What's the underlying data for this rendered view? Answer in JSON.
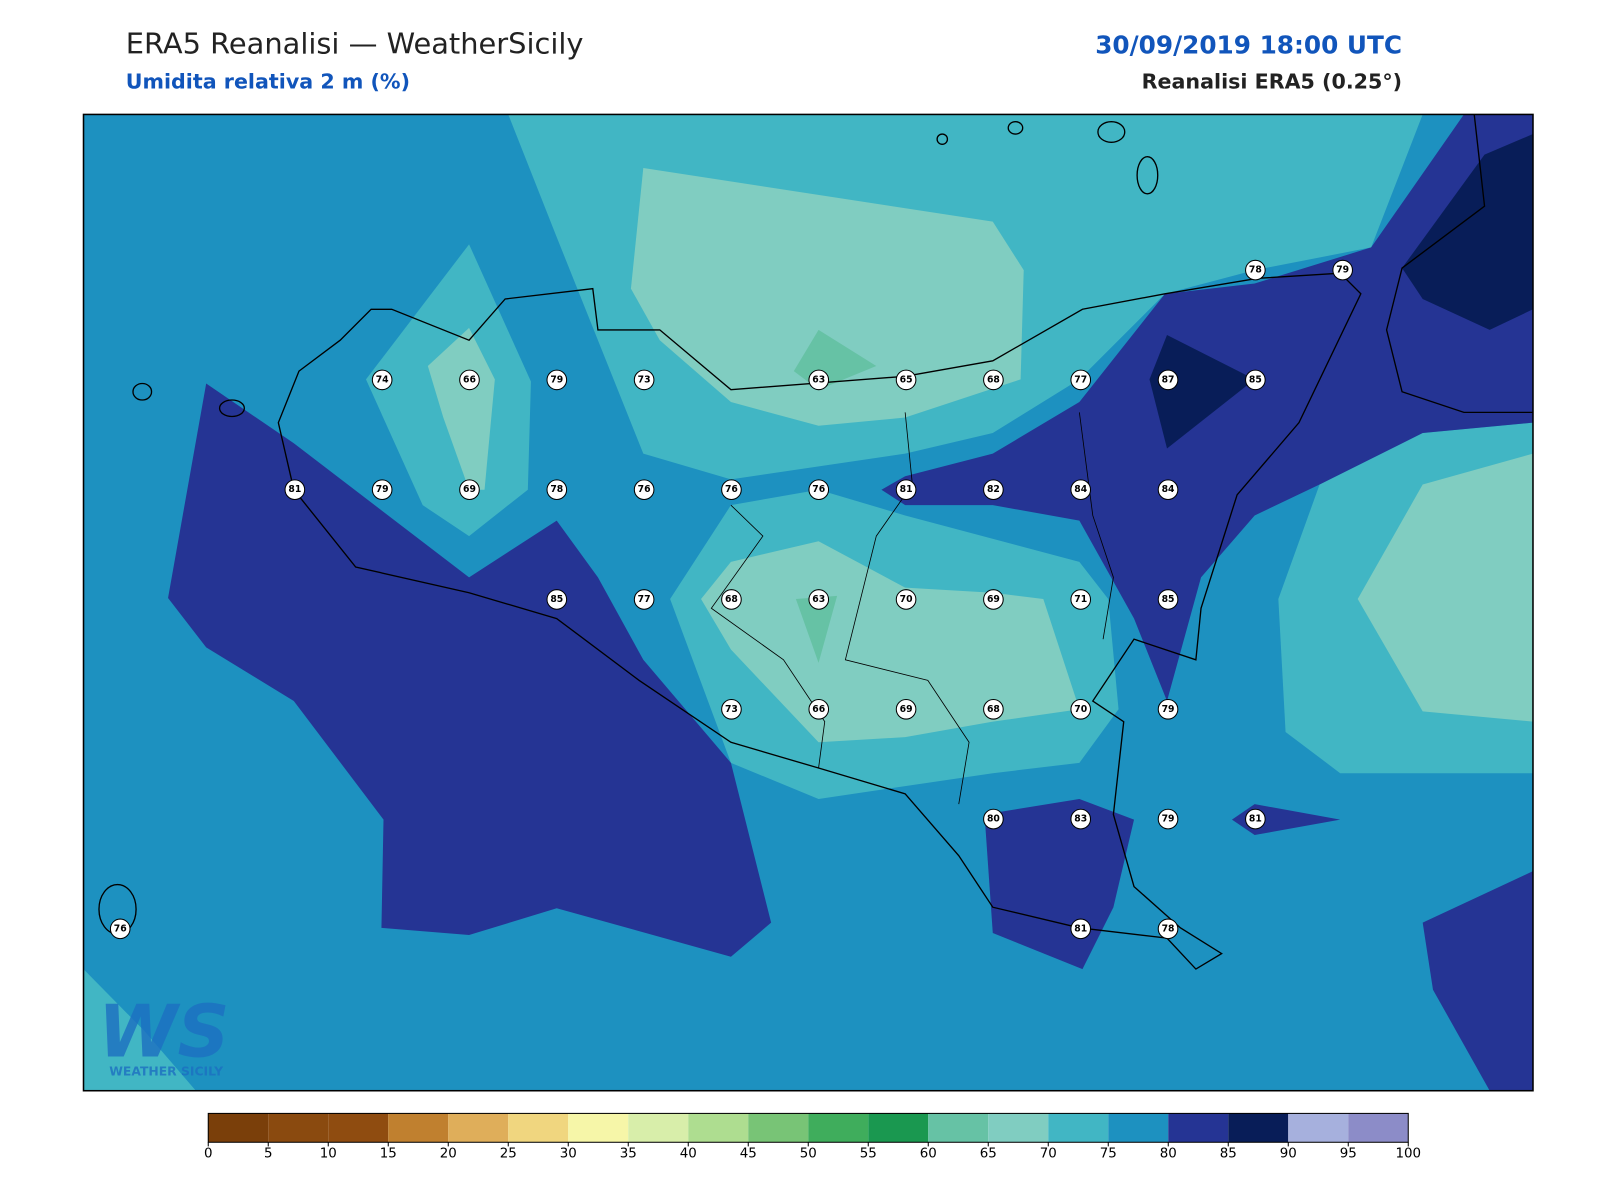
{
  "header": {
    "title": "ERA5 Reanalisi — WeatherSicily",
    "subtitle": "Umidita relativa 2 m (%)",
    "datetime": "30/09/2019 18:00 UTC",
    "source": "Reanalisi ERA5 (0.25°)"
  },
  "stations": {
    "values": [
      78,
      79,
      74,
      66,
      79,
      73,
      63,
      65,
      68,
      77,
      87,
      85,
      81,
      79,
      69,
      78,
      76,
      76,
      76,
      81,
      82,
      84,
      84,
      85,
      77,
      68,
      63,
      70,
      69,
      71,
      85,
      73,
      66,
      69,
      68,
      70,
      79,
      80,
      83,
      79,
      81,
      76,
      81,
      78
    ]
  },
  "colorbar": {
    "ticks": [
      0,
      5,
      10,
      15,
      20,
      25,
      30,
      35,
      40,
      45,
      50,
      55,
      60,
      65,
      70,
      75,
      80,
      85,
      90,
      95,
      100
    ],
    "colors": [
      "#7a3f0a",
      "#8a4a0f",
      "#8f4c10",
      "#c0802f",
      "#dfae5a",
      "#f0d67f",
      "#f6f6a8",
      "#d8eeaa",
      "#aedd90",
      "#78c476",
      "#3fad5c",
      "#1a9850",
      "#66c2a5",
      "#80cdc1",
      "#41b6c4",
      "#1d91c0",
      "#253494",
      "#081d58",
      "#a6b0dd",
      "#8c8cc8"
    ]
  },
  "logo": {
    "mark": "WS",
    "text": "WEATHER SICILY"
  }
}
